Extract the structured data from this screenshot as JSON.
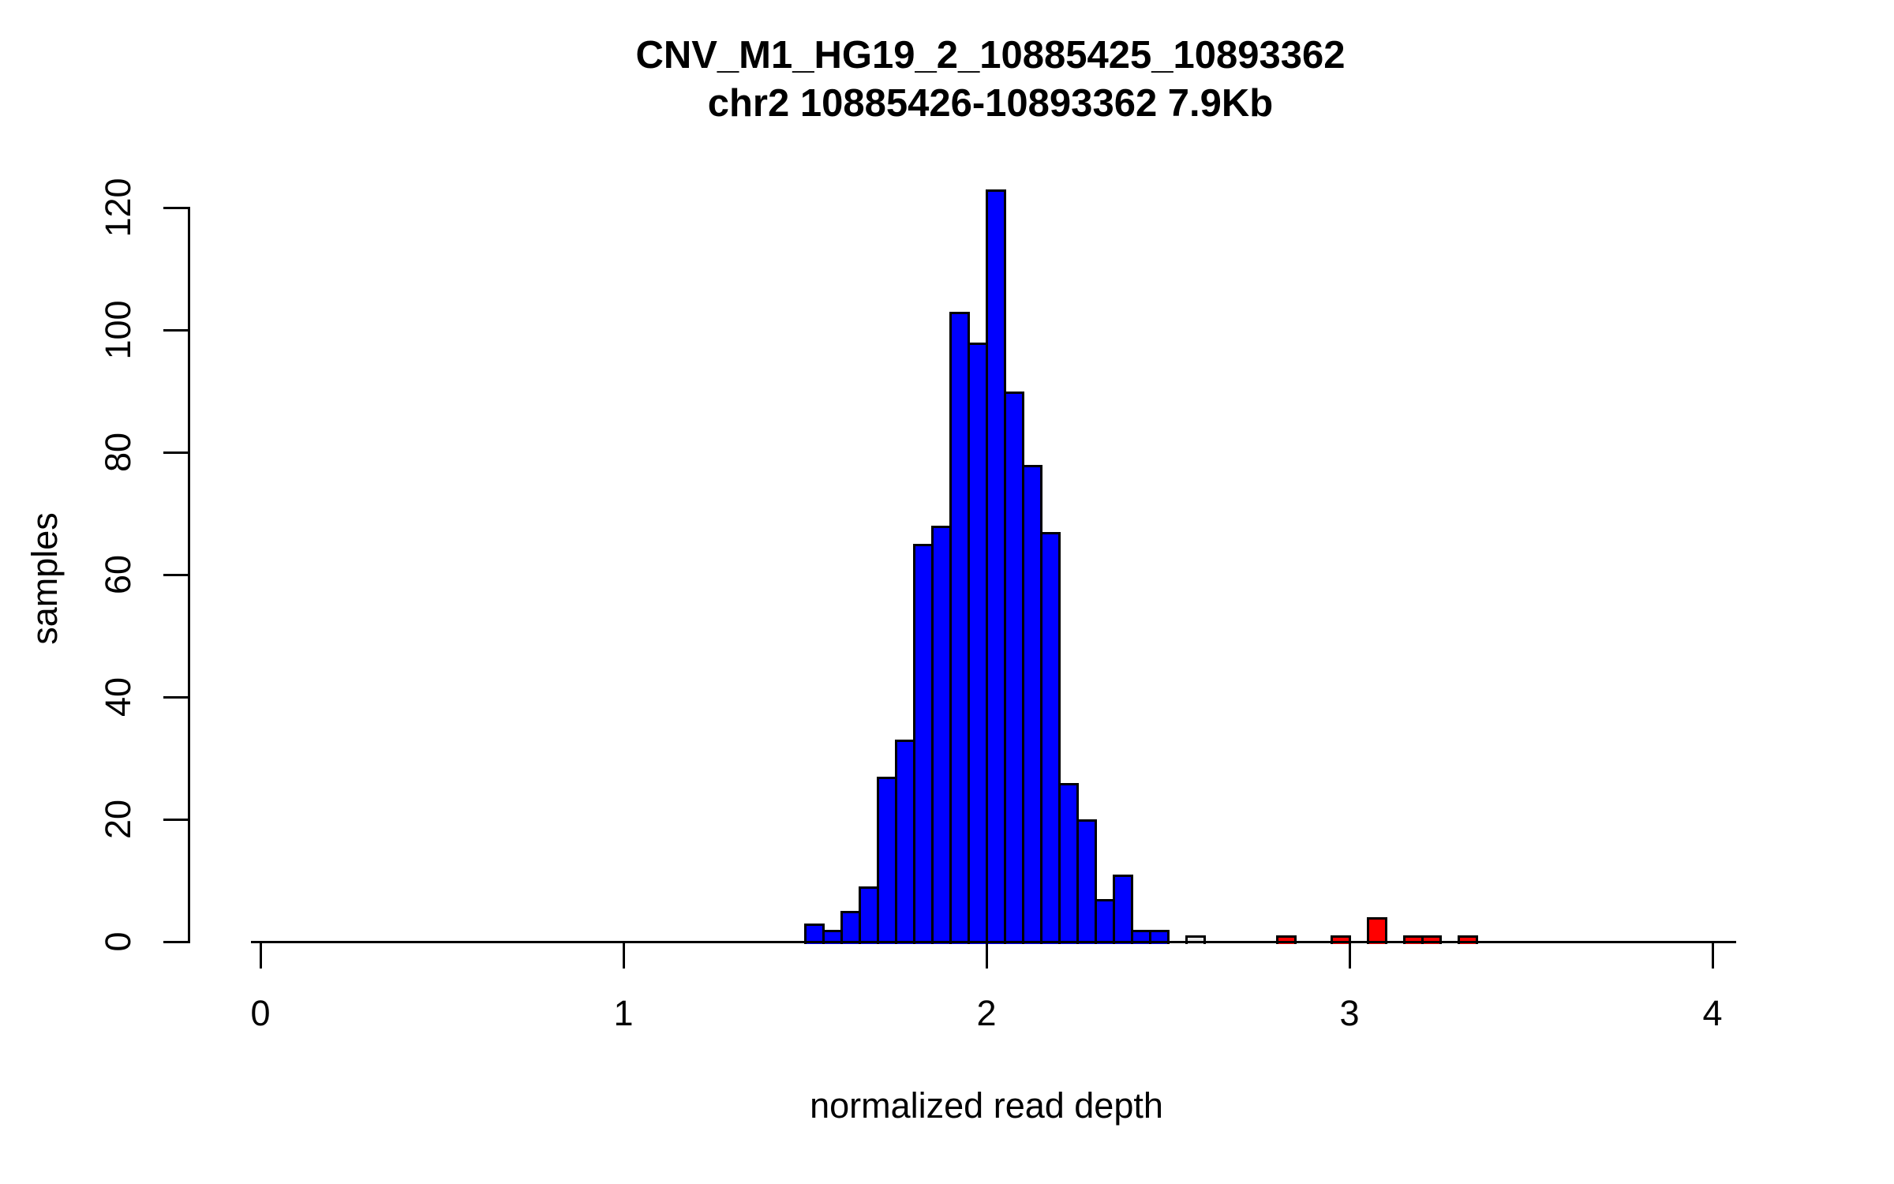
{
  "chart_data": {
    "type": "bar",
    "subtype": "histogram",
    "title": "CNV_M1_HG19_2_10885425_10893362",
    "subtitle": "chr2 10885426-10893362 7.9Kb",
    "xlabel": "normalized read depth",
    "ylabel": "samples",
    "x_ticks": [
      0,
      1,
      2,
      3,
      4
    ],
    "y_ticks": [
      0,
      20,
      40,
      60,
      80,
      100,
      120
    ],
    "xlim": [
      0,
      4
    ],
    "ylim": [
      0,
      123
    ],
    "grid": false,
    "legend": "none",
    "bin_width": 0.05,
    "colors": {
      "normal": "#0000FF",
      "outlier": "#FF0000",
      "intermediate_fill": "#E8E8E8",
      "border": "#000000"
    },
    "bars": [
      {
        "x": 1.5,
        "count": 3,
        "color": "normal"
      },
      {
        "x": 1.55,
        "count": 2,
        "color": "normal"
      },
      {
        "x": 1.6,
        "count": 5,
        "color": "normal"
      },
      {
        "x": 1.65,
        "count": 9,
        "color": "normal"
      },
      {
        "x": 1.7,
        "count": 27,
        "color": "normal"
      },
      {
        "x": 1.75,
        "count": 33,
        "color": "normal"
      },
      {
        "x": 1.8,
        "count": 65,
        "color": "normal"
      },
      {
        "x": 1.85,
        "count": 68,
        "color": "normal"
      },
      {
        "x": 1.9,
        "count": 103,
        "color": "normal"
      },
      {
        "x": 1.95,
        "count": 98,
        "color": "normal"
      },
      {
        "x": 2.0,
        "count": 123,
        "color": "normal"
      },
      {
        "x": 2.05,
        "count": 90,
        "color": "normal"
      },
      {
        "x": 2.1,
        "count": 78,
        "color": "normal"
      },
      {
        "x": 2.15,
        "count": 67,
        "color": "normal"
      },
      {
        "x": 2.2,
        "count": 26,
        "color": "normal"
      },
      {
        "x": 2.25,
        "count": 20,
        "color": "normal"
      },
      {
        "x": 2.3,
        "count": 7,
        "color": "normal"
      },
      {
        "x": 2.35,
        "count": 11,
        "color": "normal"
      },
      {
        "x": 2.4,
        "count": 2,
        "color": "normal"
      },
      {
        "x": 2.45,
        "count": 2,
        "color": "normal"
      },
      {
        "x": 2.55,
        "count": 1,
        "color": "intermediate_fill"
      },
      {
        "x": 2.8,
        "count": 1,
        "color": "outlier"
      },
      {
        "x": 2.95,
        "count": 1,
        "color": "outlier"
      },
      {
        "x": 3.05,
        "count": 4,
        "color": "outlier"
      },
      {
        "x": 3.15,
        "count": 1,
        "color": "outlier"
      },
      {
        "x": 3.2,
        "count": 1,
        "color": "outlier"
      },
      {
        "x": 3.3,
        "count": 1,
        "color": "outlier"
      }
    ]
  }
}
